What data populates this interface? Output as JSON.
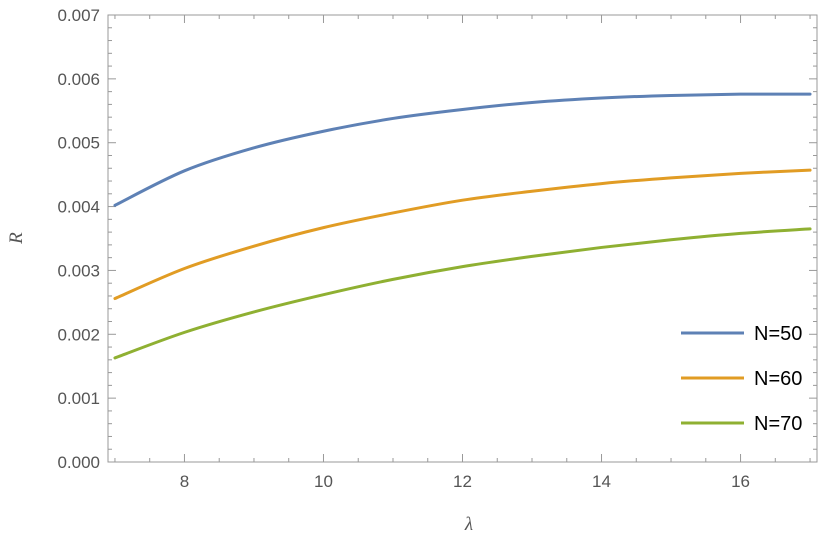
{
  "chart_data": {
    "type": "line",
    "xlabel": "λ",
    "ylabel": "R",
    "xlim": [
      6.9,
      17.1
    ],
    "ylim": [
      0,
      0.007
    ],
    "grid": false,
    "legend_position": "bottom-right",
    "x_ticks": [
      8,
      10,
      12,
      14,
      16
    ],
    "x_tick_labels": [
      "8",
      "10",
      "12",
      "14",
      "16"
    ],
    "y_ticks": [
      0,
      0.001,
      0.002,
      0.003,
      0.004,
      0.005,
      0.006,
      0.007
    ],
    "y_tick_labels": [
      "0.000",
      "0.001",
      "0.002",
      "0.003",
      "0.004",
      "0.005",
      "0.006",
      "0.007"
    ],
    "x": [
      7,
      8,
      9,
      10,
      11,
      12,
      13,
      14,
      15,
      16,
      17
    ],
    "series": [
      {
        "name": "N=50",
        "color": "#5e81b5",
        "values": [
          0.00402,
          0.00456,
          0.00492,
          0.00518,
          0.00538,
          0.00552,
          0.00563,
          0.0057,
          0.00574,
          0.00576,
          0.00576
        ]
      },
      {
        "name": "N=60",
        "color": "#e19c24",
        "values": [
          0.00256,
          0.00303,
          0.00338,
          0.00367,
          0.0039,
          0.0041,
          0.00424,
          0.00436,
          0.00445,
          0.00452,
          0.00457
        ]
      },
      {
        "name": "N=70",
        "color": "#8fb032",
        "values": [
          0.00163,
          0.00203,
          0.00235,
          0.00262,
          0.00286,
          0.00306,
          0.00322,
          0.00336,
          0.00348,
          0.00358,
          0.00365
        ]
      }
    ]
  }
}
